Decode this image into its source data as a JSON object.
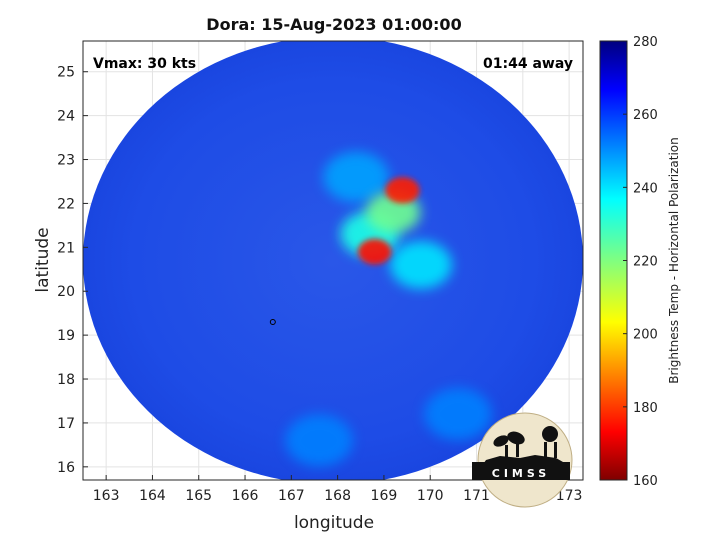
{
  "chart_data": {
    "type": "heatmap",
    "title": "Dora: 15-Aug-2023 01:00:00",
    "xlabel": "longitude",
    "ylabel": "latitude",
    "xlim": [
      162.5,
      173.3
    ],
    "ylim": [
      15.7,
      25.7
    ],
    "x_ticks": [
      163,
      164,
      165,
      166,
      167,
      168,
      169,
      170,
      171,
      172,
      173
    ],
    "y_ticks": [
      16,
      17,
      18,
      19,
      20,
      21,
      22,
      23,
      24,
      25
    ],
    "grid": true,
    "annotations": {
      "vmax": "Vmax: 30 kts",
      "time_away": "01:44 away"
    },
    "colorbar": {
      "label": "Brightness Temp - Horizontal Polarization",
      "range": [
        160,
        280
      ],
      "ticks": [
        160,
        180,
        200,
        220,
        240,
        260,
        280
      ],
      "colormap": "jet",
      "position": "right"
    },
    "swath": {
      "center_lon": 167.9,
      "center_lat": 20.7,
      "background_temp": 262,
      "features": [
        {
          "lon": 169.4,
          "lat": 22.3,
          "temp": 178
        },
        {
          "lon": 168.8,
          "lat": 20.9,
          "temp": 176
        },
        {
          "lon": 169.2,
          "lat": 21.8,
          "temp": 222
        },
        {
          "lon": 168.7,
          "lat": 21.3,
          "temp": 232
        },
        {
          "lon": 169.8,
          "lat": 20.6,
          "temp": 238
        },
        {
          "lon": 168.4,
          "lat": 22.6,
          "temp": 246
        },
        {
          "lon": 167.6,
          "lat": 16.6,
          "temp": 250
        },
        {
          "lon": 170.6,
          "lat": 17.2,
          "temp": 250
        }
      ],
      "storm_center": {
        "lon": 166.6,
        "lat": 19.3
      }
    },
    "logo_text": "CIMSS"
  }
}
